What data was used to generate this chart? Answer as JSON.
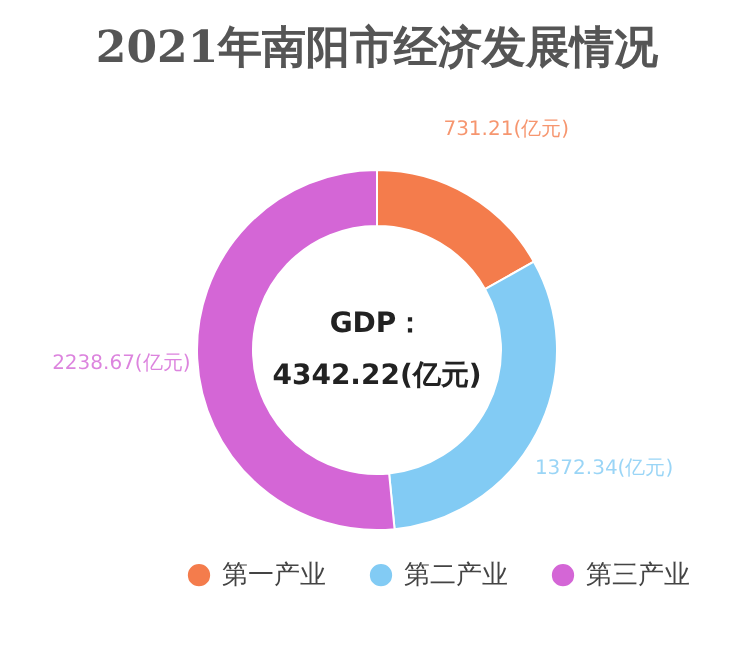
{
  "chart_data": {
    "type": "donut",
    "title": "2021年南阳市经济发展情况",
    "categories": [
      "第一产业",
      "第二产业",
      "第三产业"
    ],
    "values": [
      731.21,
      1372.34,
      2238.67
    ],
    "value_labels": [
      "731.21(亿元)",
      "1372.34(亿元)",
      "2238.67(亿元)"
    ],
    "colors": [
      "#f47c4c",
      "#82cbf4",
      "#d466d6"
    ],
    "annotations": [
      "GDP：",
      "4342.22(亿元)"
    ],
    "legend": "bottom"
  }
}
